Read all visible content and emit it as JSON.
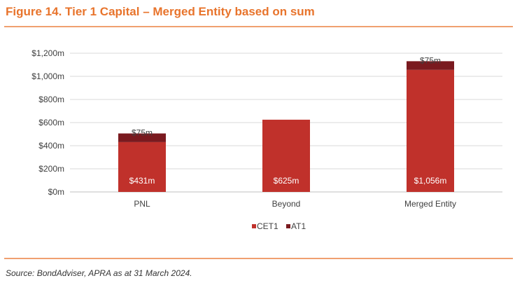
{
  "figure": {
    "title": "Figure 14. Tier 1 Capital – Merged Entity based on sum",
    "source": "Source: BondAdviser, APRA as at 31 March 2024."
  },
  "colors": {
    "accent": "#e8742c",
    "rule": "#f0a070",
    "cet1": "#c0312b",
    "at1": "#7a1a1f",
    "grid": "#d9d9d9",
    "text": "#404040"
  },
  "chart_data": {
    "type": "bar",
    "stacked": true,
    "categories": [
      "PNL",
      "Beyond",
      "Merged Entity"
    ],
    "series": [
      {
        "name": "CET1",
        "values": [
          431,
          625,
          1056
        ],
        "labels": [
          "$431m",
          "$625m",
          "$1,056m"
        ]
      },
      {
        "name": "AT1",
        "values": [
          75,
          0,
          75
        ],
        "labels": [
          "$75m",
          "",
          "$75m"
        ]
      }
    ],
    "ylim": [
      0,
      1200
    ],
    "yticks": [
      0,
      200,
      400,
      600,
      800,
      1000,
      1200
    ],
    "ytick_labels": [
      "$0m",
      "$200m",
      "$400m",
      "$600m",
      "$800m",
      "$1,000m",
      "$1,200m"
    ],
    "grid": true,
    "legend_position": "bottom"
  }
}
